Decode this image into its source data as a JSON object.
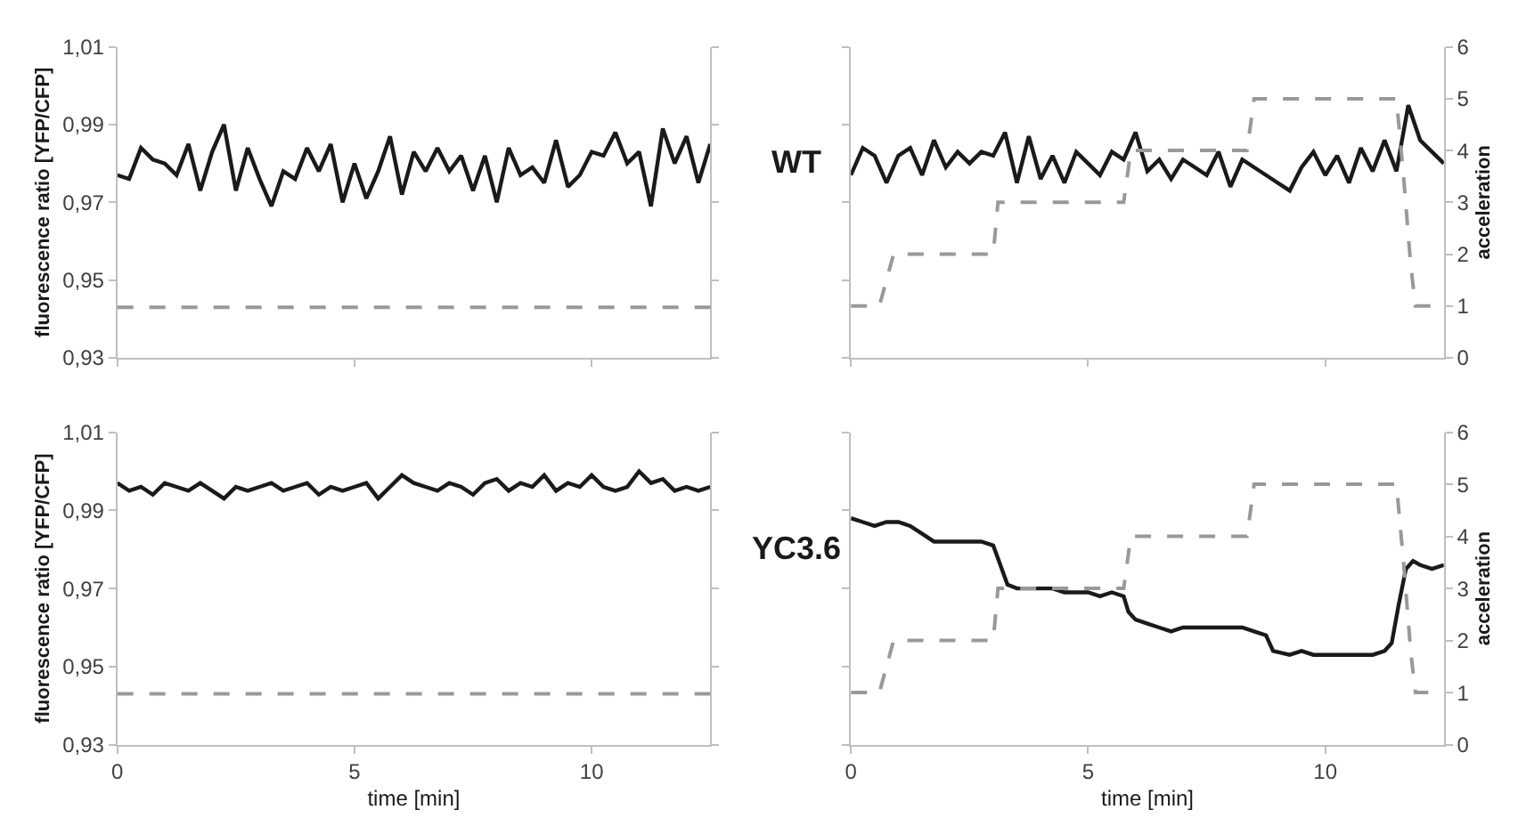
{
  "chart_data": [
    {
      "type": "line",
      "ylabel": "fluorescence ratio [YFP/CFP]",
      "tick_labels": "y",
      "xlim": [
        0,
        12.5
      ],
      "xticks": [
        0,
        5,
        10
      ],
      "ylim": [
        0.93,
        1.01
      ],
      "yticks": [
        {
          "value": 0.93,
          "label": "0,93"
        },
        {
          "value": 0.95,
          "label": "0,95"
        },
        {
          "value": 0.97,
          "label": "0,97"
        },
        {
          "value": 0.99,
          "label": "0,99"
        },
        {
          "value": 1.01,
          "label": "1,01"
        }
      ],
      "grid": false,
      "legend": false,
      "ref_lines": [
        {
          "axis": "y",
          "value": 0.943,
          "color": "#999999",
          "line_style": "dashed"
        }
      ],
      "series": [
        {
          "color": "#1a1a1a",
          "line_style": "solid",
          "x": [
            0,
            0.25,
            0.5,
            0.75,
            1.0,
            1.25,
            1.5,
            1.75,
            2.0,
            2.25,
            2.5,
            2.75,
            3.0,
            3.25,
            3.5,
            3.75,
            4.0,
            4.25,
            4.5,
            4.75,
            5.0,
            5.25,
            5.5,
            5.75,
            6.0,
            6.25,
            6.5,
            6.75,
            7.0,
            7.25,
            7.5,
            7.75,
            8.0,
            8.25,
            8.5,
            8.75,
            9.0,
            9.25,
            9.5,
            9.75,
            10.0,
            10.25,
            10.5,
            10.75,
            11.0,
            11.25,
            11.5,
            11.75,
            12.0,
            12.25,
            12.5
          ],
          "values": [
            0.977,
            0.976,
            0.984,
            0.981,
            0.98,
            0.977,
            0.985,
            0.973,
            0.983,
            0.99,
            0.973,
            0.984,
            0.976,
            0.969,
            0.978,
            0.976,
            0.984,
            0.978,
            0.985,
            0.97,
            0.98,
            0.971,
            0.978,
            0.987,
            0.972,
            0.983,
            0.978,
            0.984,
            0.978,
            0.982,
            0.973,
            0.982,
            0.97,
            0.984,
            0.977,
            0.979,
            0.975,
            0.986,
            0.974,
            0.977,
            0.983,
            0.982,
            0.988,
            0.98,
            0.983,
            0.969,
            0.989,
            0.98,
            0.987,
            0.975,
            0.985
          ]
        }
      ]
    },
    {
      "type": "line",
      "y2label": "acceleration",
      "tick_labels": "y",
      "annotations": [
        "WT"
      ],
      "xlim": [
        0,
        12.5
      ],
      "xticks": [
        0,
        5,
        10
      ],
      "ylim": [
        0.93,
        1.01
      ],
      "y2lim": [
        0,
        6
      ],
      "y2ticks": [
        0,
        1,
        2,
        3,
        4,
        5,
        6
      ],
      "grid": false,
      "legend": false,
      "series": [
        {
          "color": "#1a1a1a",
          "line_style": "solid",
          "x": [
            0,
            0.25,
            0.5,
            0.75,
            1.0,
            1.25,
            1.5,
            1.75,
            2.0,
            2.25,
            2.5,
            2.75,
            3.0,
            3.25,
            3.5,
            3.75,
            4.0,
            4.25,
            4.5,
            4.75,
            5.0,
            5.25,
            5.5,
            5.75,
            6.0,
            6.25,
            6.5,
            6.75,
            7.0,
            7.25,
            7.5,
            7.75,
            8.0,
            8.25,
            8.5,
            8.75,
            9.0,
            9.25,
            9.5,
            9.75,
            10.0,
            10.25,
            10.5,
            10.75,
            11.0,
            11.25,
            11.5,
            11.75,
            12.0,
            12.25,
            12.5
          ],
          "values": [
            0.977,
            0.984,
            0.982,
            0.975,
            0.982,
            0.984,
            0.977,
            0.986,
            0.979,
            0.983,
            0.98,
            0.983,
            0.982,
            0.988,
            0.975,
            0.987,
            0.976,
            0.982,
            0.975,
            0.983,
            0.98,
            0.977,
            0.983,
            0.981,
            0.988,
            0.978,
            0.981,
            0.976,
            0.981,
            0.979,
            0.977,
            0.983,
            0.974,
            0.981,
            0.979,
            0.977,
            0.975,
            0.973,
            0.979,
            0.983,
            0.977,
            0.982,
            0.975,
            0.984,
            0.978,
            0.986,
            0.978,
            0.995,
            0.986,
            0.983,
            0.98
          ]
        },
        {
          "color": "#999999",
          "line_style": "dashed",
          "axis": "y2",
          "x": [
            0,
            0.6,
            0.75,
            0.9,
            3.0,
            3.1,
            5.75,
            5.9,
            8.35,
            8.5,
            11.5,
            11.65,
            11.8,
            11.9,
            12.5
          ],
          "values": [
            1,
            1,
            1.5,
            2,
            2,
            3,
            3,
            4,
            4,
            5,
            5,
            3.5,
            1.8,
            1,
            1
          ]
        }
      ]
    },
    {
      "type": "line",
      "xlabel": "time [min]",
      "ylabel": "fluorescence ratio [YFP/CFP]",
      "tick_labels": "xy",
      "xlim": [
        0,
        12.5
      ],
      "xticks": [
        0,
        5,
        10
      ],
      "ylim": [
        0.93,
        1.01
      ],
      "yticks": [
        {
          "value": 0.93,
          "label": "0,93"
        },
        {
          "value": 0.95,
          "label": "0,95"
        },
        {
          "value": 0.97,
          "label": "0,97"
        },
        {
          "value": 0.99,
          "label": "0,99"
        },
        {
          "value": 1.01,
          "label": "1,01"
        }
      ],
      "grid": false,
      "legend": false,
      "ref_lines": [
        {
          "axis": "y",
          "value": 0.943,
          "color": "#999999",
          "line_style": "dashed"
        }
      ],
      "series": [
        {
          "color": "#1a1a1a",
          "line_style": "solid",
          "x": [
            0,
            0.25,
            0.5,
            0.75,
            1.0,
            1.25,
            1.5,
            1.75,
            2.0,
            2.25,
            2.5,
            2.75,
            3.0,
            3.25,
            3.5,
            3.75,
            4.0,
            4.25,
            4.5,
            4.75,
            5.0,
            5.25,
            5.5,
            5.75,
            6.0,
            6.25,
            6.5,
            6.75,
            7.0,
            7.25,
            7.5,
            7.75,
            8.0,
            8.25,
            8.5,
            8.75,
            9.0,
            9.25,
            9.5,
            9.75,
            10.0,
            10.25,
            10.5,
            10.75,
            11.0,
            11.25,
            11.5,
            11.75,
            12.0,
            12.25,
            12.5
          ],
          "values": [
            0.997,
            0.995,
            0.996,
            0.994,
            0.997,
            0.996,
            0.995,
            0.997,
            0.995,
            0.993,
            0.996,
            0.995,
            0.996,
            0.997,
            0.995,
            0.996,
            0.997,
            0.994,
            0.996,
            0.995,
            0.996,
            0.997,
            0.993,
            0.996,
            0.999,
            0.997,
            0.996,
            0.995,
            0.997,
            0.996,
            0.994,
            0.997,
            0.998,
            0.995,
            0.997,
            0.996,
            0.999,
            0.995,
            0.997,
            0.996,
            0.999,
            0.996,
            0.995,
            0.996,
            1.0,
            0.997,
            0.998,
            0.995,
            0.996,
            0.995,
            0.996
          ]
        }
      ]
    },
    {
      "type": "line",
      "xlabel": "time [min]",
      "y2label": "acceleration",
      "tick_labels": [
        "x",
        "y2"
      ],
      "annotations": [
        "YC3.6"
      ],
      "xlim": [
        0,
        12.5
      ],
      "xticks": [
        0,
        5,
        10
      ],
      "ylim": [
        0.93,
        1.01
      ],
      "y2lim": [
        0,
        6
      ],
      "y2ticks": [
        0,
        1,
        2,
        3,
        4,
        5,
        6
      ],
      "grid": false,
      "legend": false,
      "series": [
        {
          "color": "#1a1a1a",
          "line_style": "solid",
          "x": [
            0,
            0.25,
            0.5,
            0.75,
            1.0,
            1.25,
            1.5,
            1.75,
            2.0,
            2.25,
            2.5,
            2.75,
            3.0,
            3.15,
            3.3,
            3.5,
            3.75,
            4.0,
            4.25,
            4.5,
            4.75,
            5.0,
            5.25,
            5.5,
            5.75,
            5.85,
            6.0,
            6.25,
            6.5,
            6.75,
            7.0,
            7.25,
            7.5,
            7.75,
            8.0,
            8.25,
            8.5,
            8.75,
            8.9,
            9.25,
            9.5,
            9.75,
            10.0,
            10.25,
            10.5,
            10.75,
            11.0,
            11.25,
            11.4,
            11.55,
            11.7,
            11.85,
            12.0,
            12.25,
            12.5
          ],
          "values": [
            0.988,
            0.987,
            0.986,
            0.987,
            0.987,
            0.986,
            0.984,
            0.982,
            0.982,
            0.982,
            0.982,
            0.982,
            0.981,
            0.976,
            0.971,
            0.97,
            0.97,
            0.97,
            0.97,
            0.969,
            0.969,
            0.969,
            0.968,
            0.969,
            0.968,
            0.964,
            0.962,
            0.961,
            0.96,
            0.959,
            0.96,
            0.96,
            0.96,
            0.96,
            0.96,
            0.96,
            0.959,
            0.958,
            0.954,
            0.953,
            0.954,
            0.953,
            0.953,
            0.953,
            0.953,
            0.953,
            0.953,
            0.954,
            0.956,
            0.966,
            0.975,
            0.977,
            0.976,
            0.975,
            0.976
          ]
        },
        {
          "color": "#999999",
          "line_style": "dashed",
          "axis": "y2",
          "x": [
            0,
            0.6,
            0.75,
            0.9,
            3.0,
            3.1,
            5.75,
            5.9,
            8.35,
            8.5,
            11.5,
            11.65,
            11.8,
            11.9,
            12.5
          ],
          "values": [
            1,
            1,
            1.5,
            2,
            2,
            3,
            3,
            4,
            4,
            5,
            5,
            3.5,
            1.8,
            1,
            1
          ]
        }
      ]
    }
  ]
}
